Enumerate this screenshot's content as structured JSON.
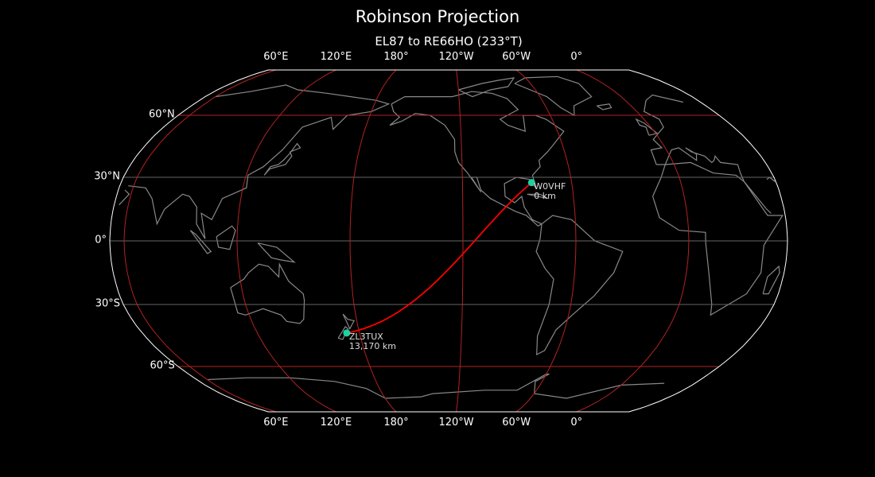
{
  "title": "Robinson Projection",
  "subtitle": "EL87 to RE66HO (233°T)",
  "map": {
    "projection": "Robinson",
    "central_longitude": -127.6,
    "colors": {
      "background": "#000000",
      "coastline": "#888888",
      "graticule_major": "#b22222",
      "graticule_minor": "#666666",
      "path": "#ff0000",
      "station": "#1fd1a0",
      "outline": "#ffffff"
    },
    "longitude_labels": [
      {
        "lon": 60,
        "text": "60°E"
      },
      {
        "lon": 120,
        "text": "120°E"
      },
      {
        "lon": 180,
        "text": "180°"
      },
      {
        "lon": -120,
        "text": "120°W"
      },
      {
        "lon": -60,
        "text": "60°W"
      },
      {
        "lon": 0,
        "text": "0°"
      }
    ],
    "latitude_labels": [
      {
        "lat": 60,
        "text": "60°N"
      },
      {
        "lat": 30,
        "text": "30°N"
      },
      {
        "lat": 0,
        "text": "0°"
      },
      {
        "lat": -30,
        "text": "30°S"
      },
      {
        "lat": -60,
        "text": "60°S"
      }
    ],
    "stations": [
      {
        "call": "W0VHF",
        "distance": "0 km",
        "lat": 27.5,
        "lon": -82
      },
      {
        "call": "ZL3TUX",
        "distance": "13,170 km",
        "lat": -43.5,
        "lon": 172.5
      }
    ]
  }
}
